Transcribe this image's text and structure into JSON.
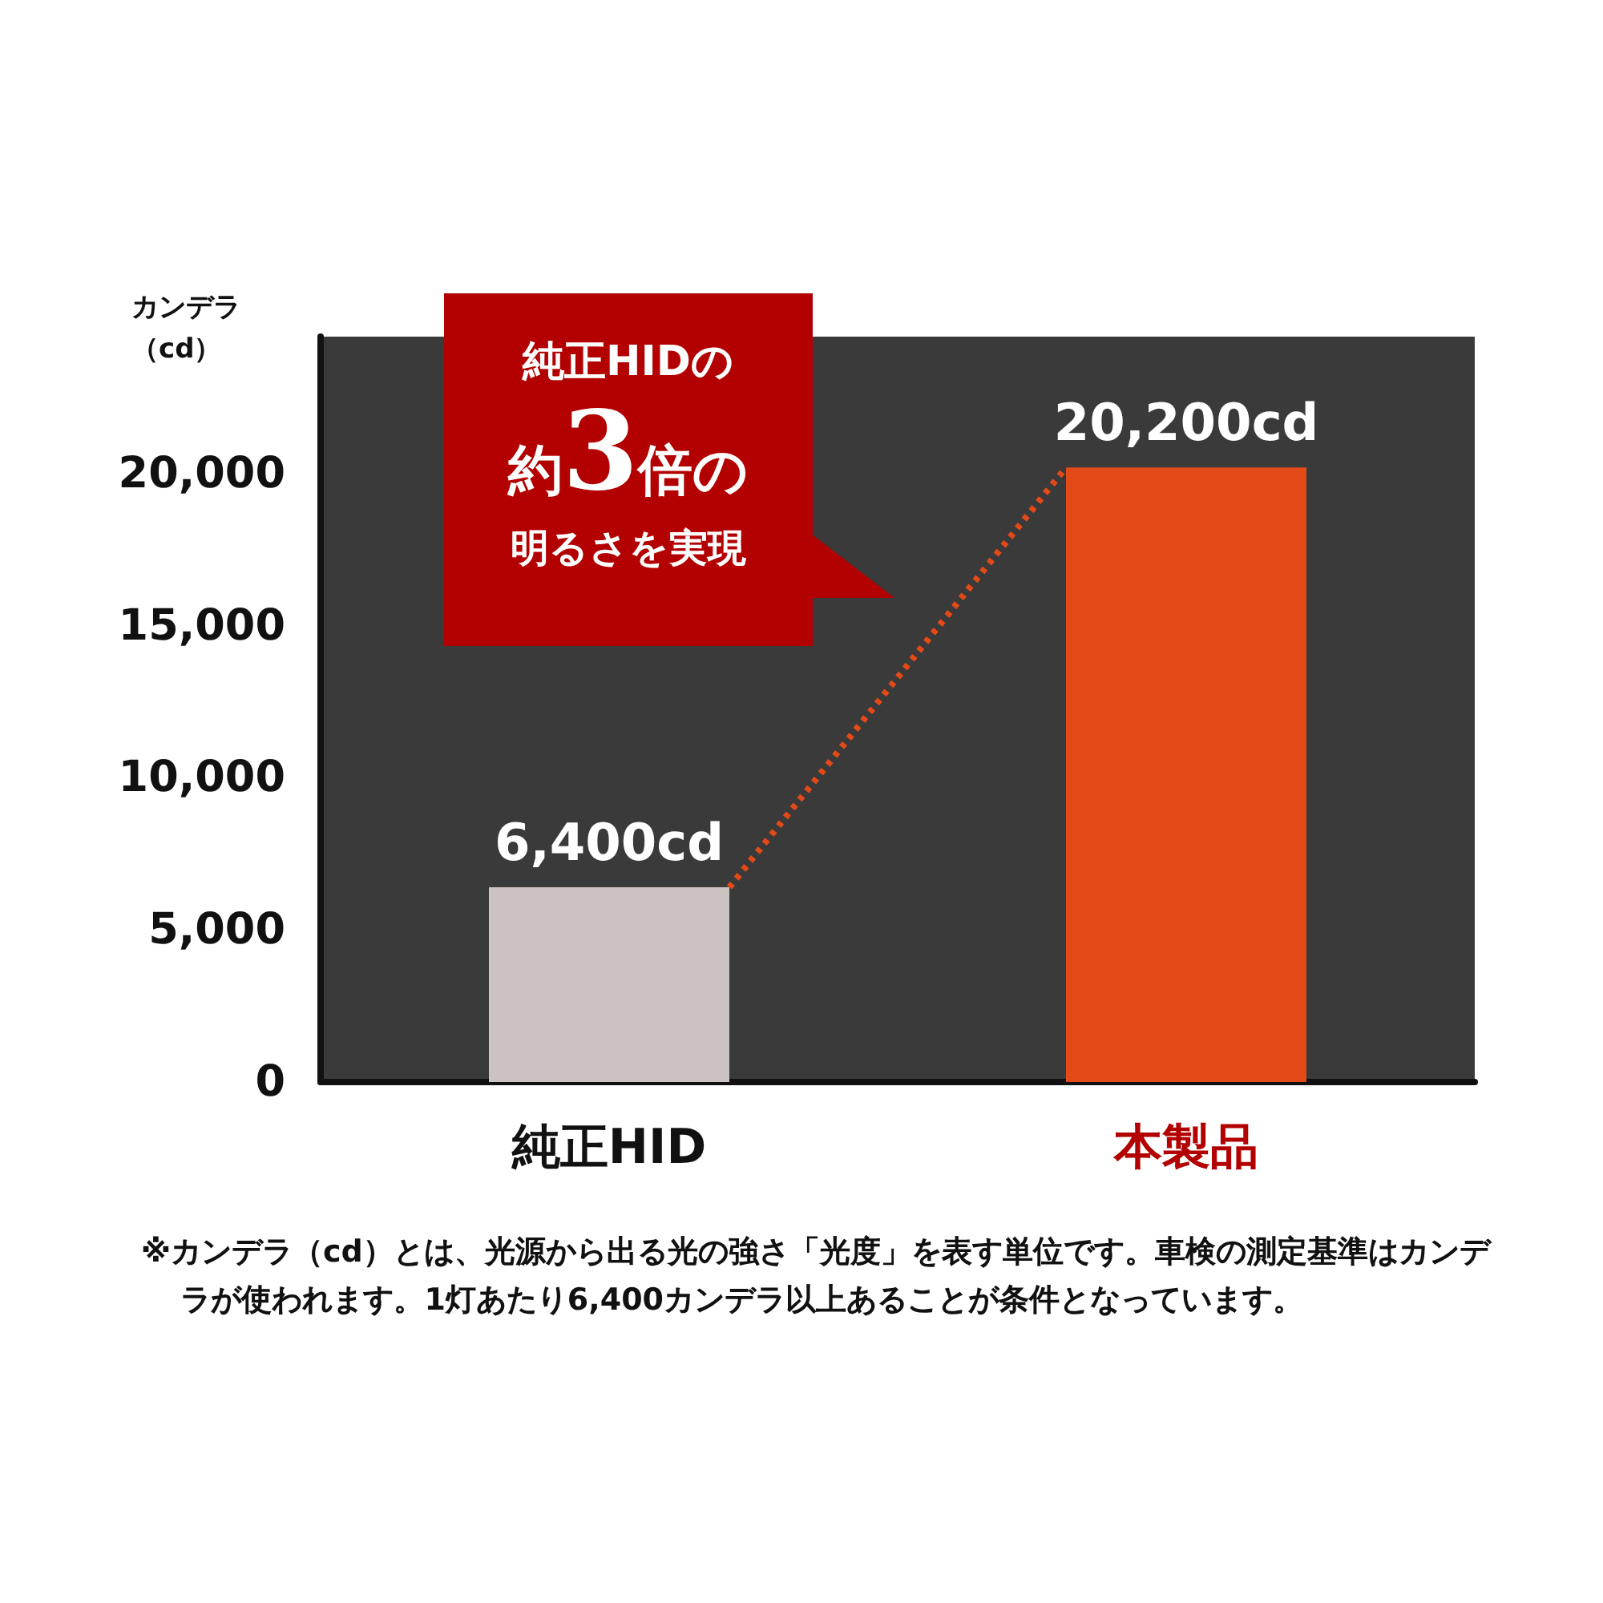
{
  "chart_data": {
    "type": "bar",
    "ylabel": "カンデラ（cd）",
    "categories": [
      "純正HID",
      "本製品"
    ],
    "values": [
      6400,
      20200
    ],
    "colors": [
      "#cbc3c1",
      "#e34a18"
    ],
    "value_labels": [
      "6,400cd",
      "20,200cd"
    ],
    "ylim": [
      0,
      24500
    ],
    "yticks": [
      {
        "value": 0,
        "label": "0"
      },
      {
        "value": 5000,
        "label": "5,000"
      },
      {
        "value": 10000,
        "label": "10,000"
      },
      {
        "value": 15000,
        "label": "15,000"
      },
      {
        "value": 20000,
        "label": "20,000"
      }
    ],
    "grid": false,
    "annotations": [
      "純正HIDの",
      "約3倍の",
      "明るさを実現",
      "※カンデラ（cd）とは、光源から出る光の強さ「光度」を表す単位です。車検の測定基準はカンデラが使われます。1灯あたり6,400カンデラ以上あることが条件となっています。"
    ]
  }
}
